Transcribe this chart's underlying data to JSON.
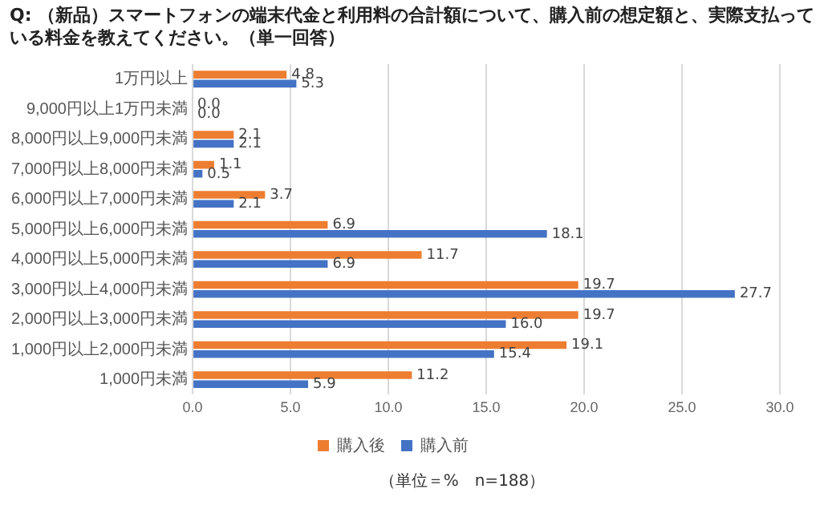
{
  "chart_data": {
    "type": "bar",
    "orientation": "horizontal",
    "title": "Q: （新品）スマートフォンの端末代金と利用料の合計額について、購入前の想定額と、実際支払っている料金を教えてください。（単一回答）",
    "categories": [
      "1万円以上",
      "9,000円以上1万円未満",
      "8,000円以上9,000円未満",
      "7,000円以上8,000円未満",
      "6,000円以上7,000円未満",
      "5,000円以上6,000円未満",
      "4,000円以上5,000円未満",
      "3,000円以上4,000円未満",
      "2,000円以上3,000円未満",
      "1,000円以上2,000円未満",
      "1,000円未満"
    ],
    "series": [
      {
        "name": "購入後",
        "color": "#ed7d31",
        "values": [
          4.8,
          0.0,
          2.1,
          1.1,
          3.7,
          6.9,
          11.7,
          19.7,
          19.7,
          19.1,
          11.2
        ],
        "value_labels": [
          "4.8",
          "0.0",
          "2.1",
          "1.1",
          "3.7",
          "6.9",
          "11.7",
          "19.7",
          "19.7",
          "19.1",
          "11.2"
        ]
      },
      {
        "name": "購入前",
        "color": "#4472c4",
        "values": [
          5.3,
          0.0,
          2.1,
          0.5,
          2.1,
          18.1,
          6.9,
          27.7,
          16.0,
          15.4,
          5.9
        ],
        "value_labels": [
          "5.3",
          "0.0",
          "2.1",
          "0.5",
          "2.1",
          "18.1",
          "6.9",
          "27.7",
          "16.0",
          "15.4",
          "5.9"
        ]
      }
    ],
    "xlim": [
      0,
      30
    ],
    "xticks": [
      {
        "value": 0,
        "label": "0.0"
      },
      {
        "value": 5,
        "label": "5.0"
      },
      {
        "value": 10,
        "label": "10.0"
      },
      {
        "value": 15,
        "label": "15.0"
      },
      {
        "value": 20,
        "label": "20.0"
      },
      {
        "value": 25,
        "label": "25.0"
      },
      {
        "value": 30,
        "label": "30.0"
      }
    ],
    "grid": "x",
    "legend": "bottom",
    "annotations": [
      "（単位＝%　n=188）"
    ]
  }
}
